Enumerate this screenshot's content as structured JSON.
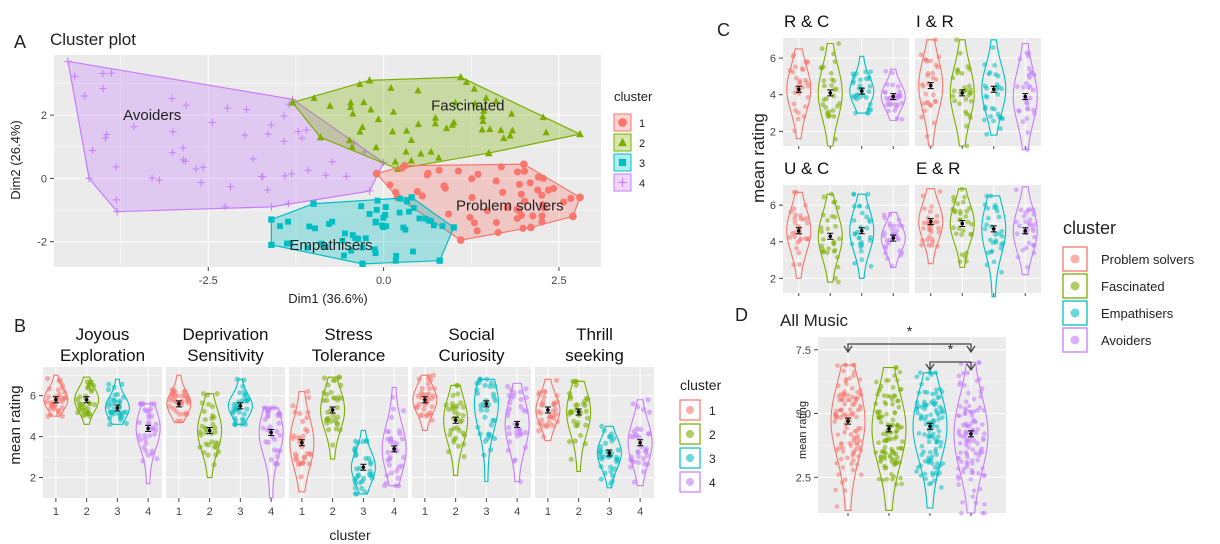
{
  "colors": {
    "c1": "#F8766D",
    "c2": "#7CAE00",
    "c3": "#00BFC4",
    "c4": "#C77CFF",
    "panel": "#EBEBEB"
  },
  "chart_data": [
    {
      "id": "A",
      "panel_letter": "A",
      "type": "scatter",
      "title": "Cluster plot",
      "xlabel": "Dim1 (36.6%)",
      "ylabel": "Dim2 (26.4%)",
      "xlim": [
        -4.7,
        3.1
      ],
      "ylim": [
        -2.8,
        3.9
      ],
      "xticks": [
        -2.5,
        0.0,
        2.5
      ],
      "xtick_labels": [
        "-2.5",
        "0.0",
        "2.5"
      ],
      "yticks": [
        -2,
        0,
        2
      ],
      "ytick_labels": [
        "-2",
        "0",
        "2"
      ],
      "grid": true,
      "legend_title": "cluster",
      "legend_labels": [
        "1",
        "2",
        "3",
        "4"
      ],
      "legend_position": "right",
      "hulls": [
        {
          "cluster": 4,
          "label": "Avoiders",
          "label_at": [
            -3.3,
            2.0
          ],
          "points": [
            [
              -4.5,
              3.7
            ],
            [
              -1.3,
              2.5
            ],
            [
              0.0,
              0.5
            ],
            [
              -0.2,
              -0.4
            ],
            [
              -1.6,
              -0.9
            ],
            [
              -3.8,
              -1.05
            ],
            [
              -4.2,
              0.0
            ]
          ]
        },
        {
          "cluster": 2,
          "label": "Fascinated",
          "label_at": [
            1.2,
            2.3
          ],
          "points": [
            [
              -1.3,
              2.4
            ],
            [
              -0.2,
              3.1
            ],
            [
              1.1,
              3.2
            ],
            [
              2.8,
              1.4
            ],
            [
              1.5,
              0.8
            ],
            [
              0.2,
              0.3
            ],
            [
              -0.9,
              1.3
            ]
          ]
        },
        {
          "cluster": 1,
          "label": "Problem solvers",
          "label_at": [
            1.8,
            -0.85
          ],
          "points": [
            [
              -0.1,
              0.15
            ],
            [
              0.3,
              0.4
            ],
            [
              2.0,
              0.45
            ],
            [
              2.8,
              -0.6
            ],
            [
              2.7,
              -1.2
            ],
            [
              2.1,
              -1.55
            ],
            [
              1.1,
              -1.95
            ],
            [
              0.2,
              -0.6
            ]
          ]
        },
        {
          "cluster": 3,
          "label": "Empathisers",
          "label_at": [
            -0.75,
            -2.1
          ],
          "points": [
            [
              -1.0,
              -0.8
            ],
            [
              0.4,
              -0.6
            ],
            [
              1.0,
              -1.55
            ],
            [
              0.8,
              -2.6
            ],
            [
              -0.3,
              -2.7
            ],
            [
              -1.6,
              -2.1
            ],
            [
              -1.6,
              -1.3
            ]
          ]
        }
      ]
    },
    {
      "id": "B",
      "panel_letter": "B",
      "type": "violin",
      "xlabel": "cluster",
      "ylabel": "mean rating",
      "categories": [
        "1",
        "2",
        "3",
        "4"
      ],
      "ylim": [
        1.0,
        7.4
      ],
      "yticks": [
        2,
        4,
        6
      ],
      "ytick_labels": [
        "2",
        "4",
        "6"
      ],
      "legend_title": "cluster",
      "legend_labels": [
        "1",
        "2",
        "3",
        "4"
      ],
      "legend_position": "right",
      "facets": [
        {
          "title": [
            "Joyous",
            "Exploration"
          ],
          "means": [
            5.8,
            5.8,
            5.4,
            4.4
          ],
          "ranges": [
            [
              5.0,
              7.0
            ],
            [
              4.6,
              6.9
            ],
            [
              4.6,
              6.8
            ],
            [
              1.7,
              5.6
            ]
          ]
        },
        {
          "title": [
            "Deprivation",
            "Sensitivity"
          ],
          "means": [
            5.6,
            4.3,
            5.5,
            4.2
          ],
          "ranges": [
            [
              4.7,
              7.0
            ],
            [
              2.0,
              6.1
            ],
            [
              4.6,
              6.8
            ],
            [
              1.0,
              5.4
            ]
          ]
        },
        {
          "title": [
            "Stress",
            "Tolerance"
          ],
          "means": [
            3.7,
            5.3,
            2.5,
            3.4
          ],
          "ranges": [
            [
              1.3,
              6.2
            ],
            [
              2.9,
              6.9
            ],
            [
              1.2,
              4.3
            ],
            [
              1.6,
              6.4
            ]
          ]
        },
        {
          "title": [
            "Social",
            "Curiosity"
          ],
          "means": [
            5.8,
            4.8,
            5.6,
            4.6
          ],
          "ranges": [
            [
              4.3,
              7.0
            ],
            [
              2.1,
              6.5
            ],
            [
              1.8,
              6.8
            ],
            [
              1.8,
              6.6
            ]
          ]
        },
        {
          "title": [
            "Thrill",
            "seeking"
          ],
          "means": [
            5.3,
            5.2,
            3.2,
            3.7
          ],
          "ranges": [
            [
              3.8,
              6.8
            ],
            [
              2.3,
              6.7
            ],
            [
              1.5,
              4.5
            ],
            [
              1.6,
              5.8
            ]
          ]
        }
      ]
    },
    {
      "id": "C",
      "panel_letter": "C",
      "type": "violin",
      "ylabel": "mean rating",
      "ylim": [
        1.2,
        7.1
      ],
      "yticks": [
        2,
        4,
        6
      ],
      "ytick_labels": [
        "2",
        "4",
        "6"
      ],
      "facets": [
        {
          "title": "R & C",
          "means": [
            4.3,
            4.1,
            4.2,
            3.9
          ],
          "ranges": [
            [
              1.6,
              6.5
            ],
            [
              1.2,
              6.8
            ],
            [
              3.0,
              6.1
            ],
            [
              2.6,
              5.4
            ]
          ]
        },
        {
          "title": "I & R",
          "means": [
            4.5,
            4.1,
            4.3,
            3.9
          ],
          "ranges": [
            [
              1.2,
              7.0
            ],
            [
              1.2,
              7.0
            ],
            [
              1.8,
              7.0
            ],
            [
              1.0,
              6.8
            ]
          ]
        },
        {
          "title": "U & C",
          "means": [
            4.6,
            4.3,
            4.6,
            4.2
          ],
          "ranges": [
            [
              2.0,
              6.7
            ],
            [
              1.8,
              6.6
            ],
            [
              2.0,
              6.6
            ],
            [
              2.6,
              5.6
            ]
          ]
        },
        {
          "title": "E & R",
          "means": [
            5.1,
            5.0,
            4.7,
            4.6
          ],
          "ranges": [
            [
              2.8,
              6.9
            ],
            [
              2.6,
              6.9
            ],
            [
              1.0,
              6.5
            ],
            [
              2.2,
              7.0
            ]
          ]
        }
      ],
      "legend_title": "cluster",
      "legend_labels": [
        "Problem solvers",
        "Fascinated",
        "Empathisers",
        "Avoiders"
      ],
      "legend_position": "right"
    },
    {
      "id": "D",
      "panel_letter": "D",
      "type": "violin",
      "title": "All Music",
      "ylabel": "mean rating",
      "ylim": [
        1.1,
        8.0
      ],
      "yticks": [
        2.5,
        5.0,
        7.5
      ],
      "ytick_labels": [
        "2.5",
        "5.0",
        "7.5"
      ],
      "means": [
        4.7,
        4.4,
        4.5,
        4.2
      ],
      "ranges": [
        [
          1.2,
          6.9
        ],
        [
          1.2,
          6.8
        ],
        [
          1.3,
          6.6
        ],
        [
          1.1,
          7.0
        ]
      ],
      "significance": [
        {
          "from": 1,
          "to": 4,
          "label": "*"
        },
        {
          "from": 3,
          "to": 4,
          "label": "*"
        }
      ]
    }
  ]
}
